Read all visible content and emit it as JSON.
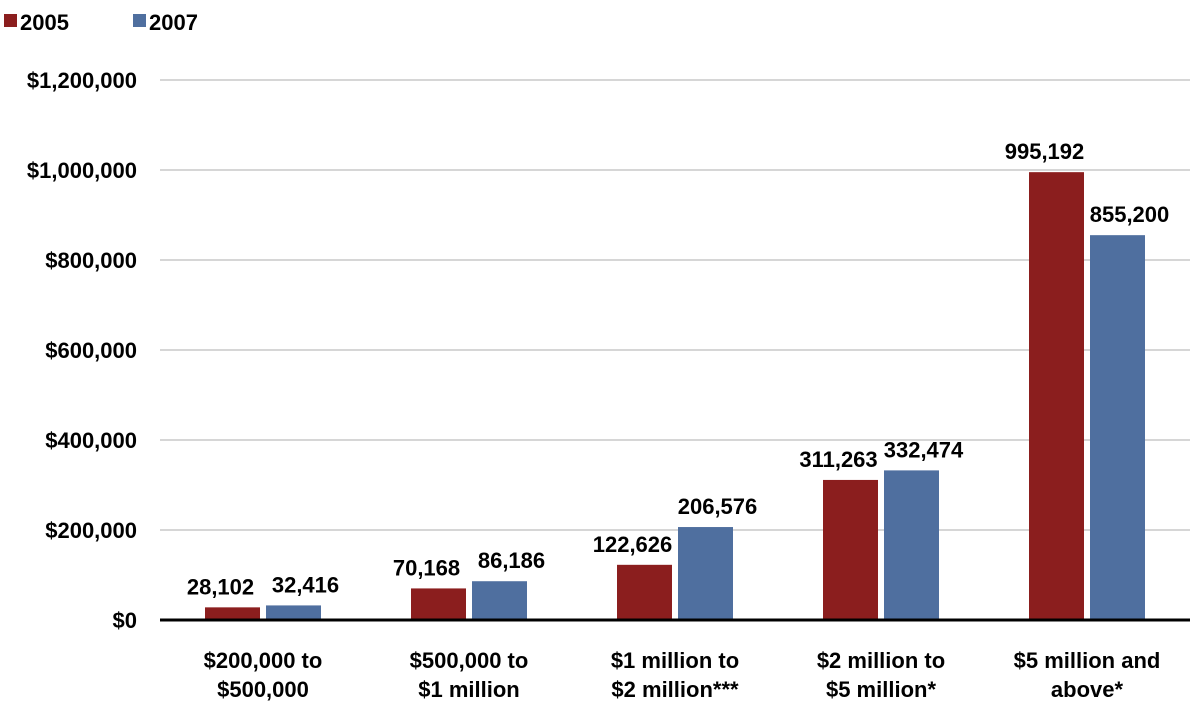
{
  "chart_data": {
    "type": "bar",
    "categories": [
      "$200,000 to\n$500,000",
      "$500,000 to\n$1 million",
      "$1 million to\n$2 million***",
      "$2 million to\n$5 million*",
      "$5 million and\nabove*"
    ],
    "series": [
      {
        "name": "2005",
        "color": "#8B1E1E",
        "values": [
          28102,
          70168,
          122626,
          311263,
          995192
        ],
        "value_labels": [
          "28,102",
          "70,168",
          "122,626",
          "311,263",
          "995,192"
        ]
      },
      {
        "name": "2007",
        "color": "#4F6F9F",
        "values": [
          32416,
          86186,
          206576,
          332474,
          855200
        ],
        "value_labels": [
          "32,416",
          "86,186",
          "206,576",
          "332,474",
          "855,200"
        ]
      }
    ],
    "ylim": [
      0,
      1200000
    ],
    "yticks": [
      0,
      200000,
      400000,
      600000,
      800000,
      1000000,
      1200000
    ],
    "ytick_labels": [
      "$0",
      "$200,000",
      "$400,000",
      "$600,000",
      "$800,000",
      "$1,000,000",
      "$1,200,000"
    ],
    "grid": true,
    "legend_position": "top-left",
    "title": "",
    "xlabel": "",
    "ylabel": ""
  }
}
